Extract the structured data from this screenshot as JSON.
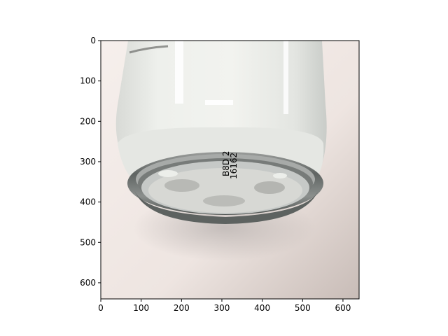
{
  "chart_data": {
    "type": "image",
    "title": "",
    "xlabel": "",
    "ylabel": "",
    "x_ticks": [
      0,
      100,
      200,
      300,
      400,
      500,
      600
    ],
    "y_ticks": [
      0,
      100,
      200,
      300,
      400,
      500,
      600
    ],
    "xlim": [
      0,
      640
    ],
    "ylim": [
      640,
      0
    ],
    "image_content": {
      "description": "photo of the bottom of a white aerosol can lying on a light surface",
      "can_bottom_print": [
        "B8D 2",
        "16162"
      ]
    },
    "colors": {
      "background": "#f0e8e4",
      "can_body": "#e9ebe6",
      "metal_rim": "#7b7f7d"
    }
  }
}
